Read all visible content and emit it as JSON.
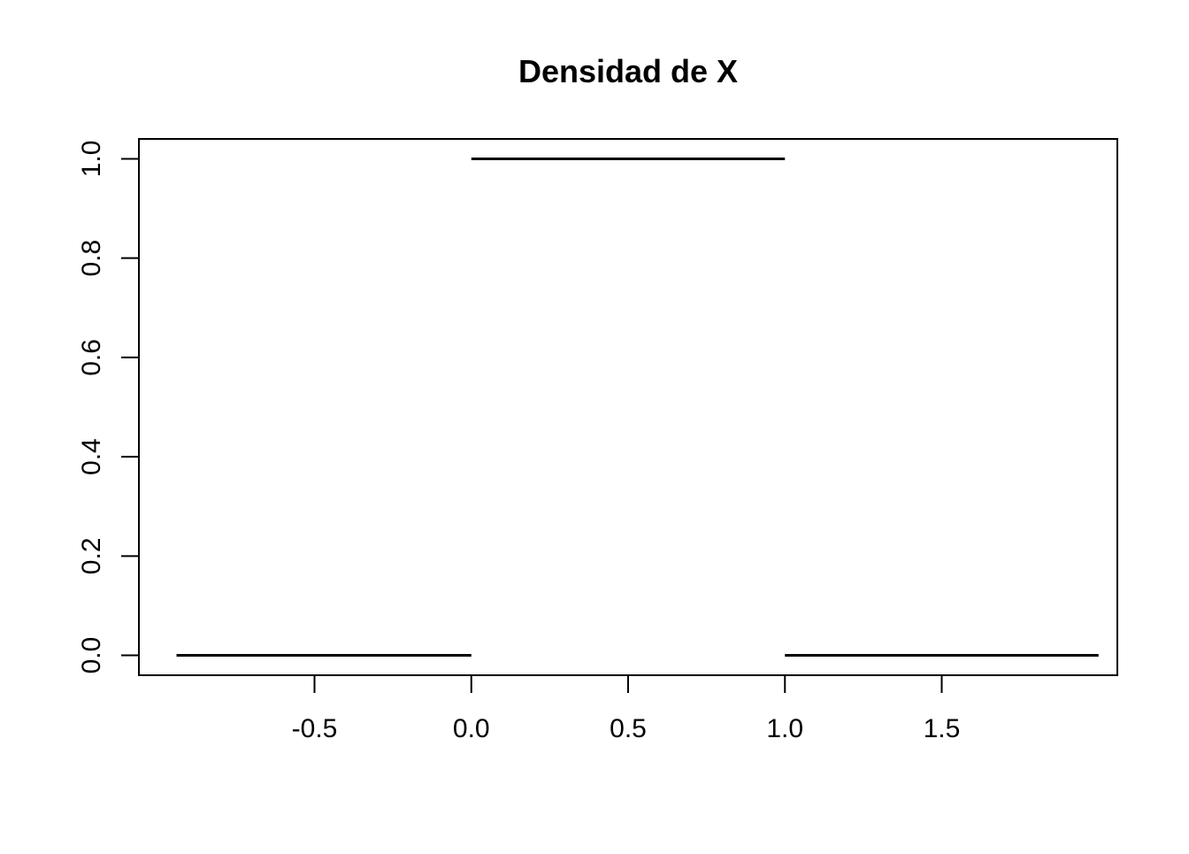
{
  "chart_data": {
    "type": "line",
    "title": "Densidad de X",
    "xlabel": "",
    "ylabel": "",
    "xlim": [
      -1.06,
      2.06
    ],
    "ylim": [
      -0.04,
      1.04
    ],
    "x_ticks": [
      -0.5,
      0.0,
      0.5,
      1.0,
      1.5
    ],
    "x_tick_labels": [
      "-0.5",
      "0.0",
      "0.5",
      "1.0",
      "1.5"
    ],
    "y_ticks": [
      0.0,
      0.2,
      0.4,
      0.6,
      0.8,
      1.0
    ],
    "y_tick_labels": [
      "0.0",
      "0.2",
      "0.4",
      "0.6",
      "0.8",
      "1.0"
    ],
    "grid": false,
    "segments": [
      {
        "x": [
          -0.94,
          0.0
        ],
        "y": [
          0.0,
          0.0
        ]
      },
      {
        "x": [
          0.0,
          1.0
        ],
        "y": [
          1.0,
          1.0
        ]
      },
      {
        "x": [
          1.0,
          2.0
        ],
        "y": [
          0.0,
          0.0
        ]
      }
    ],
    "colors": {
      "line": "#000000",
      "axis": "#000000",
      "background": "#ffffff"
    }
  }
}
